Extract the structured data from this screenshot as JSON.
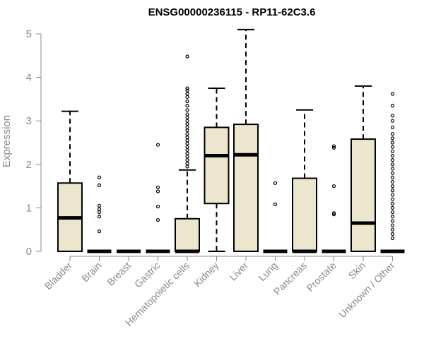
{
  "chart_data": {
    "type": "boxplot",
    "title": "ENSG00000236115 - RP11-62C3.6",
    "xlabel": "",
    "ylabel": "Expression",
    "ylim": [
      0,
      5.1
    ],
    "yticks": [
      0,
      1,
      2,
      3,
      4,
      5
    ],
    "colors": {
      "box_fill": "#ede6cf",
      "stroke": "#000000",
      "axis": "#8a8a8a"
    },
    "categories": [
      "Bladder",
      "Brain",
      "Breast",
      "Gastric",
      "Hematopoietic cells",
      "Kidney",
      "Liver",
      "Lung",
      "Pancreas",
      "Prostate",
      "Skin",
      "Unknown / Other"
    ],
    "boxes": [
      {
        "category": "Bladder",
        "whisker_low": 0,
        "q1": 0,
        "median": 0.77,
        "q3": 1.57,
        "whisker_high": 3.22,
        "outliers": []
      },
      {
        "category": "Brain",
        "whisker_low": 0,
        "q1": 0,
        "median": 0,
        "q3": 0,
        "whisker_high": 0,
        "outliers": [
          0.46,
          0.8,
          0.9,
          0.97,
          1.05,
          1.52,
          1.7
        ]
      },
      {
        "category": "Breast",
        "whisker_low": 0,
        "q1": 0,
        "median": 0,
        "q3": 0,
        "whisker_high": 0,
        "outliers": []
      },
      {
        "category": "Gastric",
        "whisker_low": 0,
        "q1": 0,
        "median": 0,
        "q3": 0,
        "whisker_high": 0,
        "outliers": [
          0.72,
          1.03,
          1.38,
          1.47,
          2.45
        ]
      },
      {
        "category": "Hematopoietic cells",
        "whisker_low": 0,
        "q1": 0,
        "median": 0,
        "q3": 0.75,
        "whisker_high": 1.87,
        "outliers": [
          1.95,
          2.02,
          2.1,
          2.18,
          2.25,
          2.33,
          2.4,
          2.48,
          2.55,
          2.62,
          2.7,
          2.78,
          2.85,
          2.93,
          3.0,
          3.08,
          3.15,
          3.25,
          3.35,
          3.45,
          3.55,
          3.62,
          3.7,
          3.75,
          4.48
        ]
      },
      {
        "category": "Kidney",
        "whisker_low": 0,
        "q1": 1.1,
        "median": 2.2,
        "q3": 2.85,
        "whisker_high": 3.75,
        "outliers": []
      },
      {
        "category": "Liver",
        "whisker_low": 0,
        "q1": 0,
        "median": 2.22,
        "q3": 2.92,
        "whisker_high": 5.1,
        "outliers": []
      },
      {
        "category": "Lung",
        "whisker_low": 0,
        "q1": 0,
        "median": 0,
        "q3": 0,
        "whisker_high": 0,
        "outliers": [
          1.08,
          1.57
        ]
      },
      {
        "category": "Pancreas",
        "whisker_low": 0,
        "q1": 0,
        "median": 0,
        "q3": 1.68,
        "whisker_high": 3.25,
        "outliers": []
      },
      {
        "category": "Prostate",
        "whisker_low": 0,
        "q1": 0,
        "median": 0,
        "q3": 0,
        "whisker_high": 0,
        "outliers": [
          0.85,
          0.88,
          1.5,
          2.38,
          2.42
        ]
      },
      {
        "category": "Skin",
        "whisker_low": 0,
        "q1": 0,
        "median": 0.65,
        "q3": 2.58,
        "whisker_high": 3.8,
        "outliers": []
      },
      {
        "category": "Unknown / Other",
        "whisker_low": 0,
        "q1": 0,
        "median": 0,
        "q3": 0,
        "whisker_high": 0,
        "outliers": [
          0.3,
          0.4,
          0.5,
          0.6,
          0.7,
          0.8,
          0.9,
          1.0,
          1.1,
          1.2,
          1.3,
          1.4,
          1.5,
          1.6,
          1.7,
          1.8,
          1.9,
          2.0,
          2.1,
          2.2,
          2.3,
          2.4,
          2.5,
          2.6,
          2.7,
          2.85,
          3.0,
          3.12,
          3.35,
          3.62
        ]
      }
    ]
  }
}
